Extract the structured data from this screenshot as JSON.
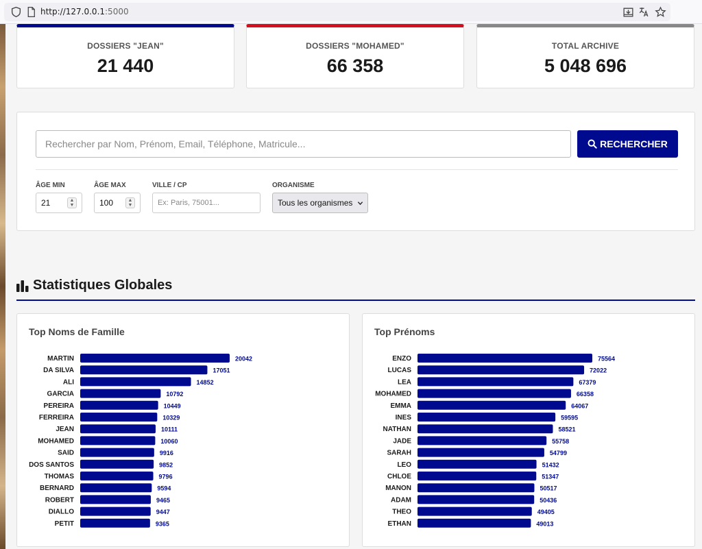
{
  "browser": {
    "url_host": "http://127.0.0.1",
    "url_port": ":5000"
  },
  "stats": [
    {
      "label": "DOSSIERS \"JEAN\"",
      "value": "21 440",
      "color": "#000a8e"
    },
    {
      "label": "DOSSIERS \"MOHAMED\"",
      "value": "66 358",
      "color": "#d31020"
    },
    {
      "label": "TOTAL ARCHIVE",
      "value": "5 048 696",
      "color": "#888888"
    }
  ],
  "search": {
    "placeholder": "Rechercher par Nom, Prénom, Email, Téléphone, Matricule...",
    "button_label": "RECHERCHER"
  },
  "filters": {
    "age_min_label": "ÂGE MIN",
    "age_min_value": "21",
    "age_max_label": "ÂGE MAX",
    "age_max_value": "100",
    "city_label": "VILLE / CP",
    "city_placeholder": "Ex: Paris, 75001...",
    "org_label": "ORGANISME",
    "org_selected": "Tous les organismes"
  },
  "section": {
    "title": "Statistiques Globales"
  },
  "colors": {
    "accent": "#000a8e",
    "bar": "#000a8e"
  },
  "chart_data": [
    {
      "type": "bar",
      "orientation": "horizontal",
      "title": "Top Noms de Famille",
      "categories": [
        "MARTIN",
        "DA SILVA",
        "ALI",
        "GARCIA",
        "PEREIRA",
        "FERREIRA",
        "JEAN",
        "MOHAMED",
        "SAID",
        "DOS SANTOS",
        "THOMAS",
        "BERNARD",
        "ROBERT",
        "DIALLO",
        "PETIT"
      ],
      "values": [
        20042,
        17051,
        14852,
        10792,
        10449,
        10329,
        10111,
        10060,
        9916,
        9852,
        9796,
        9594,
        9465,
        9447,
        9365
      ],
      "xlim": [
        0,
        20042
      ],
      "grid": false,
      "data_labels": true
    },
    {
      "type": "bar",
      "orientation": "horizontal",
      "title": "Top Prénoms",
      "categories": [
        "ENZO",
        "LUCAS",
        "LEA",
        "MOHAMED",
        "EMMA",
        "INES",
        "NATHAN",
        "JADE",
        "SARAH",
        "LEO",
        "CHLOE",
        "MANON",
        "ADAM",
        "THEO",
        "ETHAN"
      ],
      "values": [
        75564,
        72022,
        67379,
        66358,
        64067,
        59595,
        58521,
        55758,
        54799,
        51432,
        51347,
        50517,
        50436,
        49405,
        49013
      ],
      "xlim": [
        0,
        75564
      ],
      "grid": false,
      "data_labels": true
    }
  ]
}
